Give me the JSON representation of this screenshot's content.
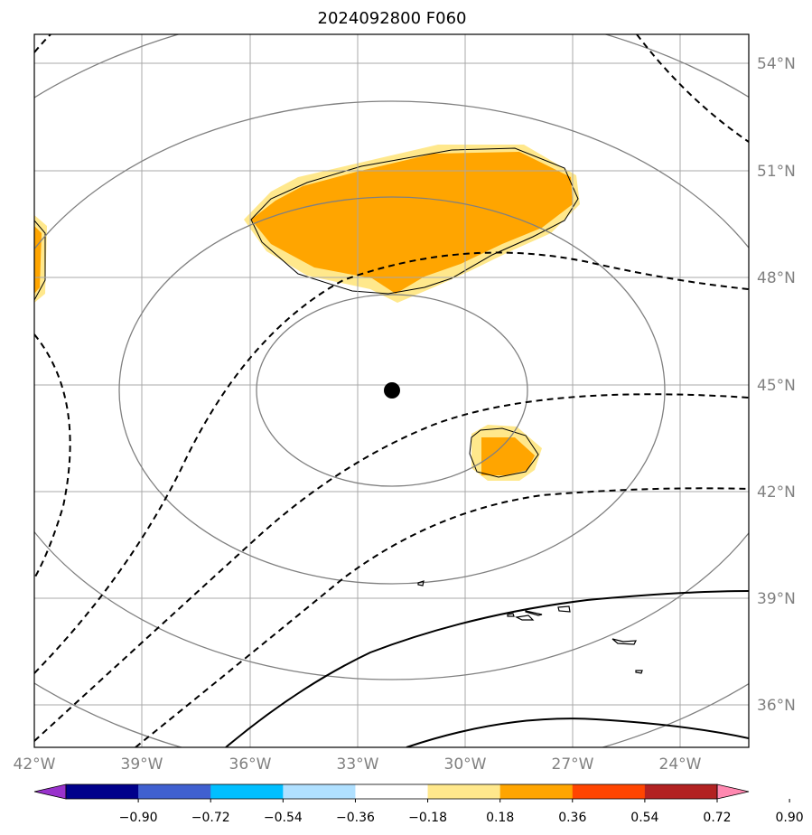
{
  "map": {
    "title": "2024092800 F060",
    "lon_labels": [
      "42°W",
      "39°W",
      "36°W",
      "33°W",
      "30°W",
      "27°W",
      "24°W"
    ],
    "lat_labels": [
      "54°N",
      "51°N",
      "48°N",
      "45°N",
      "42°N",
      "39°N",
      "36°N"
    ],
    "center_marker": {
      "lon": -32,
      "lat": 44.8
    },
    "colors": {
      "gridline": "#a8a8a8",
      "ring_contour": "#808080",
      "coastline": "#000000",
      "shade_light": "#ffe88c",
      "shade_dark": "#ffa500"
    }
  },
  "colorbar": {
    "levels": [
      "−0.90",
      "−0.72",
      "−0.54",
      "−0.36",
      "−0.18",
      "0.18",
      "0.36",
      "0.54",
      "0.72",
      "0.90"
    ],
    "colors": [
      "#9932cc",
      "#00008b",
      "#4060d0",
      "#00bfff",
      "#b0e0ff",
      "#ffffff",
      "#ffe88c",
      "#ffa500",
      "#ff4500",
      "#b22222",
      "#ff88b0"
    ]
  }
}
